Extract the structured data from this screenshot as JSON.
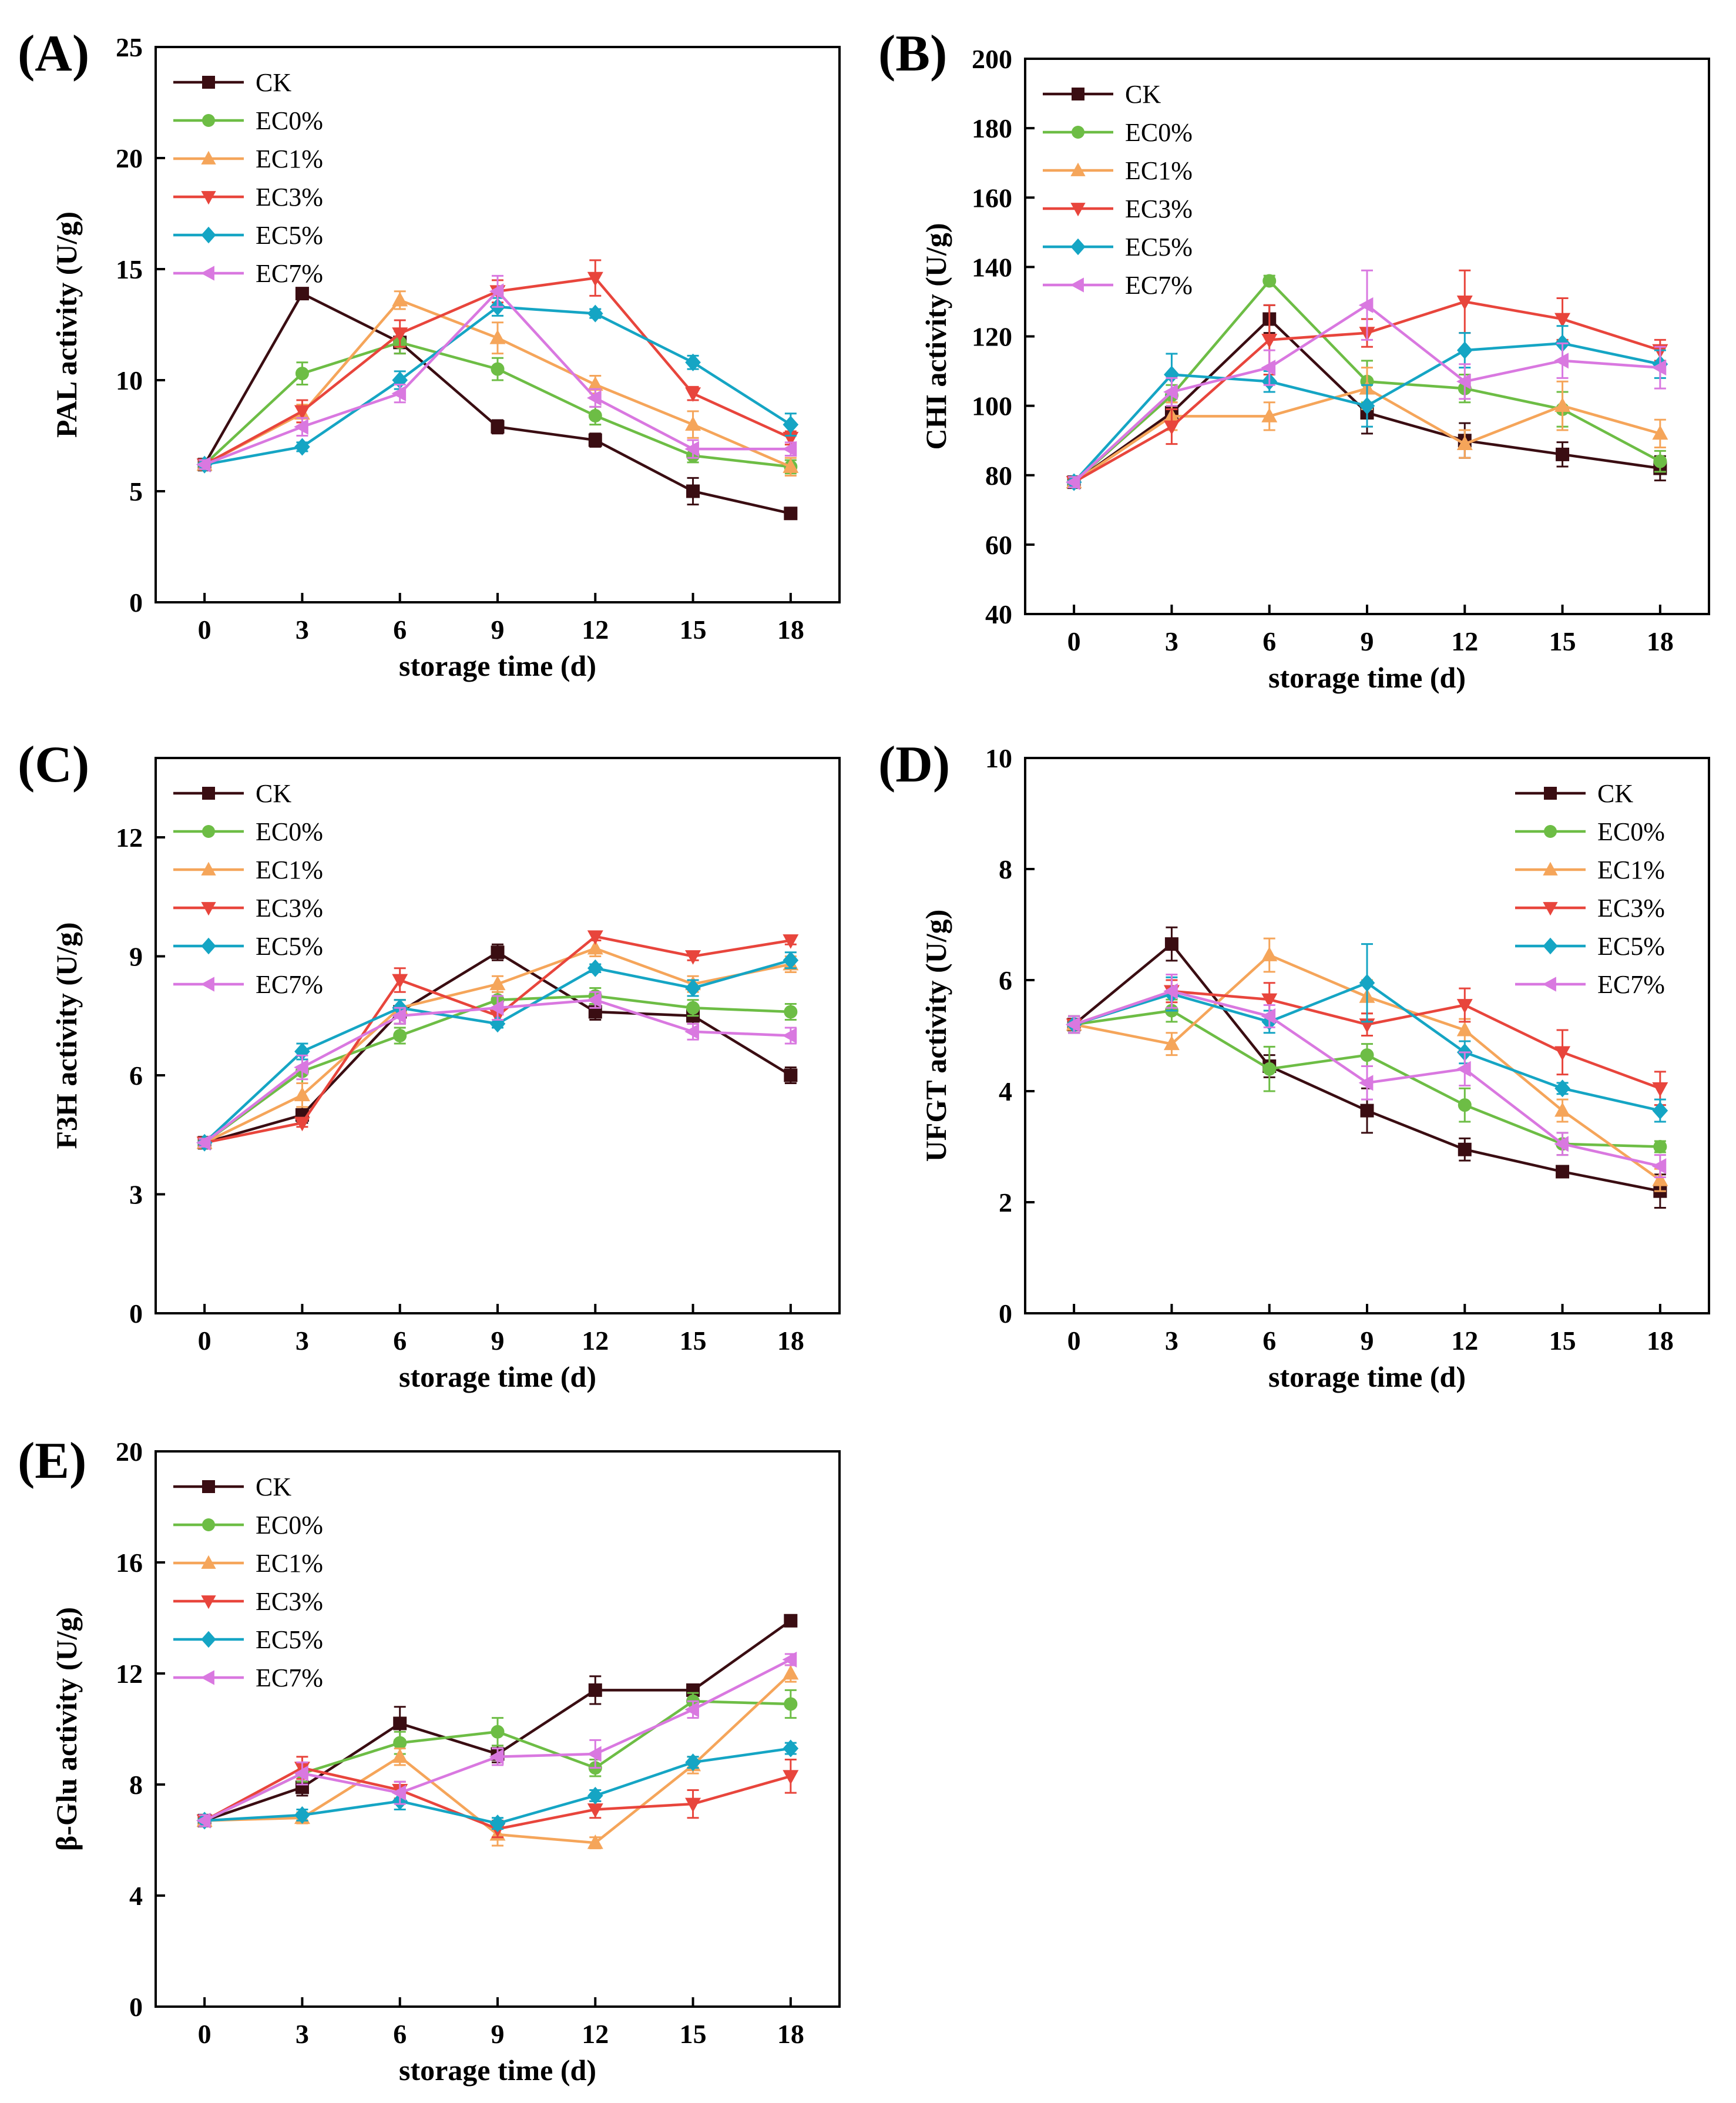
{
  "figure": {
    "panel_count": 5
  },
  "colors": {
    "CK": "#3a0d12",
    "EC0%": "#6dbd45",
    "EC1%": "#f5a55a",
    "EC3%": "#e8453c",
    "EC5%": "#15a5c4",
    "EC7%": "#d978e0"
  },
  "chart_data": [
    {
      "panel": "(A)",
      "type": "line",
      "xlabel": "storage time (d)",
      "ylabel": "PAL activity (U/g)",
      "x": [
        0,
        3,
        6,
        9,
        12,
        15,
        18
      ],
      "xlim": [
        -1.5,
        19.5
      ],
      "ylim": [
        0,
        25
      ],
      "yticks": [
        0,
        5,
        10,
        15,
        20,
        25
      ],
      "legend_position": "top-left",
      "series": [
        {
          "name": "CK",
          "marker": "square",
          "values": [
            6.2,
            13.9,
            11.7,
            7.9,
            7.3,
            5.0,
            4.0
          ],
          "errors": [
            0.2,
            0.2,
            0.5,
            0.3,
            0.3,
            0.6,
            0.2
          ]
        },
        {
          "name": "EC0%",
          "marker": "circle",
          "values": [
            6.2,
            10.3,
            11.7,
            10.5,
            8.4,
            6.6,
            6.1
          ],
          "errors": [
            0.2,
            0.5,
            0.5,
            0.5,
            0.4,
            0.3,
            0.3
          ]
        },
        {
          "name": "EC1%",
          "marker": "triangle-up",
          "values": [
            6.2,
            8.5,
            13.6,
            11.9,
            9.8,
            8.0,
            6.1
          ],
          "errors": [
            0.2,
            0.4,
            0.4,
            0.7,
            0.4,
            0.6,
            0.4
          ]
        },
        {
          "name": "EC3%",
          "marker": "triangle-down",
          "values": [
            6.2,
            8.6,
            12.1,
            14.0,
            14.6,
            9.4,
            7.4
          ],
          "errors": [
            0.2,
            0.5,
            0.6,
            0.5,
            0.8,
            0.3,
            0.3
          ]
        },
        {
          "name": "EC5%",
          "marker": "diamond",
          "values": [
            6.2,
            7.0,
            10.0,
            13.3,
            13.0,
            10.8,
            8.0
          ],
          "errors": [
            0.2,
            0.2,
            0.4,
            0.4,
            0.2,
            0.3,
            0.5
          ]
        },
        {
          "name": "EC7%",
          "marker": "triangle-left",
          "values": [
            6.2,
            7.9,
            9.4,
            14.0,
            9.2,
            6.9,
            6.9
          ],
          "errors": [
            0.2,
            0.4,
            0.4,
            0.7,
            0.4,
            0.4,
            0.3
          ]
        }
      ]
    },
    {
      "panel": "(B)",
      "type": "line",
      "xlabel": "storage time (d)",
      "ylabel": "CHI activity (U/g)",
      "x": [
        0,
        3,
        6,
        9,
        12,
        15,
        18
      ],
      "xlim": [
        -1.5,
        19.5
      ],
      "ylim": [
        40,
        200
      ],
      "yticks": [
        40,
        60,
        80,
        100,
        120,
        140,
        160,
        180,
        200
      ],
      "legend_position": "top-left",
      "series": [
        {
          "name": "CK",
          "marker": "square",
          "values": [
            78,
            98,
            125,
            98,
            90,
            86,
            82
          ],
          "errors": [
            1.5,
            3,
            4,
            6,
            5,
            3.5,
            3.5
          ]
        },
        {
          "name": "EC0%",
          "marker": "circle",
          "values": [
            78,
            103,
            136,
            107,
            105,
            99,
            84
          ],
          "errors": [
            1.5,
            3,
            1.5,
            6,
            4,
            5,
            3
          ]
        },
        {
          "name": "EC1%",
          "marker": "triangle-up",
          "values": [
            78,
            97,
            97,
            105,
            89,
            100,
            92
          ],
          "errors": [
            1.5,
            4,
            4,
            6,
            4,
            7,
            4
          ]
        },
        {
          "name": "EC3%",
          "marker": "triangle-down",
          "values": [
            78,
            94,
            119,
            121,
            130,
            125,
            116
          ],
          "errors": [
            1.5,
            5,
            10,
            4,
            9,
            6,
            3
          ]
        },
        {
          "name": "EC5%",
          "marker": "diamond",
          "values": [
            78,
            109,
            107,
            100,
            116,
            118,
            112
          ],
          "errors": [
            1.5,
            6,
            3,
            6,
            5,
            5,
            4
          ]
        },
        {
          "name": "EC7%",
          "marker": "triangle-left",
          "values": [
            78,
            104,
            111,
            129,
            107,
            113,
            111
          ],
          "errors": [
            1.5,
            4,
            5,
            10,
            5,
            5,
            6
          ]
        }
      ]
    },
    {
      "panel": "(C)",
      "type": "line",
      "xlabel": "storage time (d)",
      "ylabel": "F3H activity (U/g)",
      "x": [
        0,
        3,
        6,
        9,
        12,
        15,
        18
      ],
      "xlim": [
        -1.5,
        19.5
      ],
      "ylim": [
        0,
        14
      ],
      "yticks": [
        0,
        3,
        6,
        9,
        12
      ],
      "legend_position": "top-left",
      "series": [
        {
          "name": "CK",
          "marker": "square",
          "values": [
            4.3,
            5.0,
            7.6,
            9.1,
            7.6,
            7.5,
            6.0
          ],
          "errors": [
            0.1,
            0.2,
            0.3,
            0.2,
            0.2,
            0.2,
            0.2
          ]
        },
        {
          "name": "EC0%",
          "marker": "circle",
          "values": [
            4.3,
            6.1,
            7.0,
            7.9,
            8.0,
            7.7,
            7.6
          ],
          "errors": [
            0.1,
            0.3,
            0.2,
            0.2,
            0.2,
            0.2,
            0.2
          ]
        },
        {
          "name": "EC1%",
          "marker": "triangle-up",
          "values": [
            4.3,
            5.5,
            7.7,
            8.3,
            9.2,
            8.3,
            8.8
          ],
          "errors": [
            0.1,
            0.3,
            0.2,
            0.2,
            0.2,
            0.2,
            0.2
          ]
        },
        {
          "name": "EC3%",
          "marker": "triangle-down",
          "values": [
            4.3,
            4.8,
            8.4,
            7.5,
            9.5,
            9.0,
            9.4
          ],
          "errors": [
            0.1,
            0.1,
            0.3,
            0.2,
            0.1,
            0.1,
            0.1
          ]
        },
        {
          "name": "EC5%",
          "marker": "diamond",
          "values": [
            4.3,
            6.6,
            7.7,
            7.3,
            8.7,
            8.2,
            8.9
          ],
          "errors": [
            0.1,
            0.2,
            0.2,
            0.1,
            0.1,
            0.2,
            0.2
          ]
        },
        {
          "name": "EC7%",
          "marker": "triangle-left",
          "values": [
            4.3,
            6.2,
            7.5,
            7.7,
            7.9,
            7.1,
            7.0
          ],
          "errors": [
            0.1,
            0.3,
            0.2,
            0.3,
            0.2,
            0.2,
            0.2
          ]
        }
      ]
    },
    {
      "panel": "(D)",
      "type": "line",
      "xlabel": "storage time (d)",
      "ylabel": "UFGT activity (U/g)",
      "x": [
        0,
        3,
        6,
        9,
        12,
        15,
        18
      ],
      "xlim": [
        -1.5,
        19.5
      ],
      "ylim": [
        0,
        10
      ],
      "yticks": [
        0,
        2,
        4,
        6,
        8,
        10
      ],
      "legend_position": "top-right",
      "series": [
        {
          "name": "CK",
          "marker": "square",
          "values": [
            5.2,
            6.65,
            4.45,
            3.65,
            2.95,
            2.55,
            2.2
          ],
          "errors": [
            0.15,
            0.3,
            0.2,
            0.4,
            0.2,
            0.1,
            0.3
          ]
        },
        {
          "name": "EC0%",
          "marker": "circle",
          "values": [
            5.2,
            5.45,
            4.4,
            4.65,
            3.75,
            3.05,
            3.0
          ],
          "errors": [
            0.15,
            0.2,
            0.4,
            0.2,
            0.3,
            0.2,
            0.1
          ]
        },
        {
          "name": "EC1%",
          "marker": "triangle-up",
          "values": [
            5.2,
            4.85,
            6.45,
            5.7,
            5.1,
            3.65,
            2.4
          ],
          "errors": [
            0.15,
            0.2,
            0.3,
            0.3,
            0.2,
            0.2,
            0.2
          ]
        },
        {
          "name": "EC3%",
          "marker": "triangle-down",
          "values": [
            5.2,
            5.8,
            5.65,
            5.2,
            5.55,
            4.7,
            4.05
          ],
          "errors": [
            0.15,
            0.2,
            0.3,
            0.2,
            0.3,
            0.4,
            0.3
          ]
        },
        {
          "name": "EC5%",
          "marker": "diamond",
          "values": [
            5.2,
            5.75,
            5.25,
            5.95,
            4.7,
            4.05,
            3.65
          ],
          "errors": [
            0.15,
            0.3,
            0.2,
            0.7,
            0.2,
            0.1,
            0.2
          ]
        },
        {
          "name": "EC7%",
          "marker": "triangle-left",
          "values": [
            5.2,
            5.8,
            5.35,
            4.15,
            4.4,
            3.05,
            2.65
          ],
          "errors": [
            0.15,
            0.3,
            0.2,
            0.3,
            0.3,
            0.2,
            0.2
          ]
        }
      ]
    },
    {
      "panel": "(E)",
      "type": "line",
      "xlabel": "storage time (d)",
      "ylabel": "β-Glu activity (U/g)",
      "x": [
        0,
        3,
        6,
        9,
        12,
        15,
        18
      ],
      "xlim": [
        -1.5,
        19.5
      ],
      "ylim": [
        0,
        20
      ],
      "yticks": [
        0,
        4,
        8,
        12,
        16,
        20
      ],
      "legend_position": "top-left",
      "series": [
        {
          "name": "CK",
          "marker": "square",
          "values": [
            6.7,
            7.9,
            10.2,
            9.1,
            11.4,
            11.4,
            13.9
          ],
          "errors": [
            0.2,
            0.3,
            0.6,
            0.3,
            0.5,
            0.2,
            0.2
          ]
        },
        {
          "name": "EC0%",
          "marker": "circle",
          "values": [
            6.7,
            8.4,
            9.5,
            9.9,
            8.6,
            11.0,
            10.9
          ],
          "errors": [
            0.2,
            0.3,
            0.4,
            0.5,
            0.3,
            0.3,
            0.5
          ]
        },
        {
          "name": "EC1%",
          "marker": "triangle-up",
          "values": [
            6.7,
            6.8,
            9.0,
            6.2,
            5.9,
            8.7,
            12.0
          ],
          "errors": [
            0.2,
            0.2,
            0.3,
            0.4,
            0.2,
            0.3,
            0.3
          ]
        },
        {
          "name": "EC3%",
          "marker": "triangle-down",
          "values": [
            6.7,
            8.6,
            7.8,
            6.4,
            7.1,
            7.3,
            8.3
          ],
          "errors": [
            0.2,
            0.4,
            0.3,
            0.3,
            0.3,
            0.5,
            0.6
          ]
        },
        {
          "name": "EC5%",
          "marker": "diamond",
          "values": [
            6.7,
            6.9,
            7.4,
            6.6,
            7.6,
            8.8,
            9.3
          ],
          "errors": [
            0.2,
            0.2,
            0.3,
            0.2,
            0.2,
            0.2,
            0.2
          ]
        },
        {
          "name": "EC7%",
          "marker": "triangle-left",
          "values": [
            6.7,
            8.4,
            7.7,
            9.0,
            9.1,
            10.7,
            12.5
          ],
          "errors": [
            0.2,
            0.4,
            0.4,
            0.3,
            0.5,
            0.3,
            0.2
          ]
        }
      ]
    }
  ]
}
